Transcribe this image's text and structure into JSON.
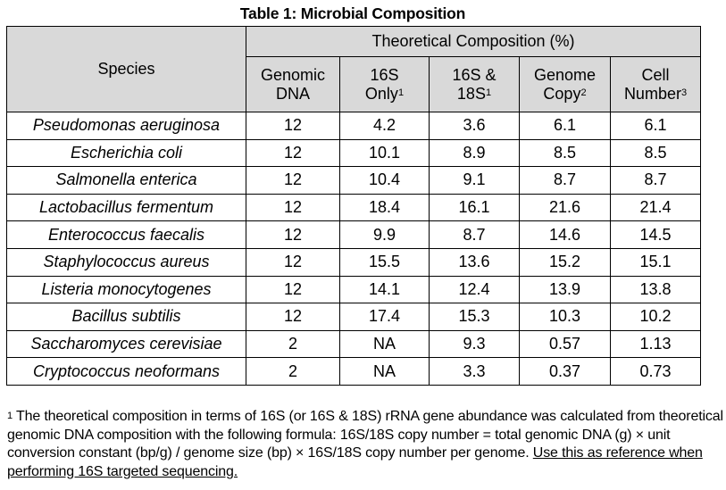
{
  "title": "Table 1: Microbial Composition",
  "table": {
    "species_header": "Species",
    "group_header": "Theoretical Composition (%)",
    "columns": [
      {
        "line1": "Genomic",
        "line2": "DNA",
        "sup": ""
      },
      {
        "line1": "16S",
        "line2": "Only",
        "sup": "1"
      },
      {
        "line1": "16S &",
        "line2": "18S",
        "sup": "1"
      },
      {
        "line1": "Genome",
        "line2": "Copy",
        "sup": "2"
      },
      {
        "line1": "Cell",
        "line2": "Number",
        "sup": "3"
      }
    ],
    "rows": [
      {
        "species": "Pseudomonas aeruginosa",
        "values": [
          "12",
          "4.2",
          "3.6",
          "6.1",
          "6.1"
        ]
      },
      {
        "species": "Escherichia coli",
        "values": [
          "12",
          "10.1",
          "8.9",
          "8.5",
          "8.5"
        ]
      },
      {
        "species": "Salmonella enterica",
        "values": [
          "12",
          "10.4",
          "9.1",
          "8.7",
          "8.7"
        ]
      },
      {
        "species": "Lactobacillus fermentum",
        "values": [
          "12",
          "18.4",
          "16.1",
          "21.6",
          "21.4"
        ]
      },
      {
        "species": "Enterococcus faecalis",
        "values": [
          "12",
          "9.9",
          "8.7",
          "14.6",
          "14.5"
        ]
      },
      {
        "species": "Staphylococcus aureus",
        "values": [
          "12",
          "15.5",
          "13.6",
          "15.2",
          "15.1"
        ]
      },
      {
        "species": "Listeria monocytogenes",
        "values": [
          "12",
          "14.1",
          "12.4",
          "13.9",
          "13.8"
        ]
      },
      {
        "species": "Bacillus subtilis",
        "values": [
          "12",
          "17.4",
          "15.3",
          "10.3",
          "10.2"
        ]
      },
      {
        "species": "Saccharomyces cerevisiae",
        "values": [
          "2",
          "NA",
          "9.3",
          "0.57",
          "1.13"
        ]
      },
      {
        "species": "Cryptococcus neoformans",
        "values": [
          "2",
          "NA",
          "3.3",
          "0.37",
          "0.73"
        ]
      }
    ]
  },
  "footnote": {
    "marker": "1",
    "text": " The theoretical composition in terms of 16S (or 16S & 18S) rRNA gene abundance was calculated from theoretical genomic DNA composition with the following formula: 16S/18S copy number = total genomic DNA (g) × unit conversion constant (bp/g) / genome size (bp) × 16S/18S copy number per genome. ",
    "underlined": "Use this as reference when performing 16S targeted sequencing."
  }
}
